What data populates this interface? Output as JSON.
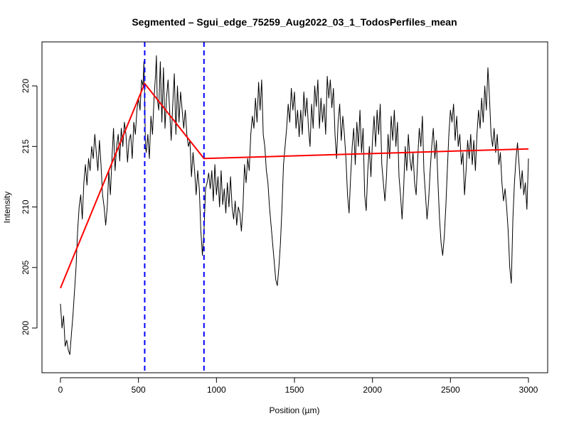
{
  "chart_data": {
    "type": "line",
    "title": "Segmented – Sgui_edge_75259_Aug2022_03_1_TodosPerfiles_mean",
    "xlabel": "Position (µm)",
    "ylabel": "Intensity",
    "xlim": [
      0,
      3000
    ],
    "ylim": [
      197.5,
      222.8
    ],
    "xticks": [
      0,
      500,
      1000,
      1500,
      2000,
      2500,
      3000
    ],
    "yticks": [
      200,
      205,
      210,
      215,
      220
    ],
    "grid": false,
    "series": [
      {
        "role": "profile",
        "color": "#000000",
        "points": [
          [
            0,
            202
          ],
          [
            10,
            200
          ],
          [
            20,
            201
          ],
          [
            30,
            198.5
          ],
          [
            40,
            199
          ],
          [
            50,
            198.2
          ],
          [
            60,
            197.8
          ],
          [
            70,
            199.5
          ],
          [
            80,
            201
          ],
          [
            90,
            203
          ],
          [
            100,
            205
          ],
          [
            110,
            208
          ],
          [
            120,
            210
          ],
          [
            130,
            211
          ],
          [
            140,
            209
          ],
          [
            150,
            212
          ],
          [
            160,
            213.5
          ],
          [
            170,
            211.8
          ],
          [
            180,
            214
          ],
          [
            190,
            213
          ],
          [
            200,
            215
          ],
          [
            210,
            214
          ],
          [
            220,
            216
          ],
          [
            230,
            214.5
          ],
          [
            240,
            213
          ],
          [
            250,
            215.5
          ],
          [
            260,
            213.5
          ],
          [
            270,
            211
          ],
          [
            280,
            210
          ],
          [
            290,
            208.5
          ],
          [
            300,
            210
          ],
          [
            310,
            213
          ],
          [
            320,
            211
          ],
          [
            330,
            214
          ],
          [
            340,
            216.5
          ],
          [
            350,
            213
          ],
          [
            360,
            215
          ],
          [
            370,
            216
          ],
          [
            380,
            213.8
          ],
          [
            390,
            216.5
          ],
          [
            400,
            215
          ],
          [
            410,
            217
          ],
          [
            420,
            216
          ],
          [
            430,
            213.7
          ],
          [
            440,
            215.5
          ],
          [
            450,
            216
          ],
          [
            460,
            214
          ],
          [
            470,
            217
          ],
          [
            480,
            216
          ],
          [
            490,
            218
          ],
          [
            500,
            219
          ],
          [
            510,
            218
          ],
          [
            520,
            220.5
          ],
          [
            530,
            220
          ],
          [
            535,
            222
          ],
          [
            540,
            219
          ],
          [
            545,
            215
          ],
          [
            550,
            214.5
          ],
          [
            560,
            216
          ],
          [
            570,
            214
          ],
          [
            580,
            217.5
          ],
          [
            590,
            216
          ],
          [
            600,
            219
          ],
          [
            610,
            221
          ],
          [
            615,
            222.5
          ],
          [
            620,
            219
          ],
          [
            630,
            218
          ],
          [
            640,
            222
          ],
          [
            650,
            217
          ],
          [
            660,
            221.5
          ],
          [
            670,
            216.5
          ],
          [
            680,
            219
          ],
          [
            690,
            220.5
          ],
          [
            700,
            218
          ],
          [
            710,
            215.5
          ],
          [
            720,
            218.5
          ],
          [
            730,
            221
          ],
          [
            740,
            216
          ],
          [
            750,
            220
          ],
          [
            760,
            217
          ],
          [
            770,
            219.5
          ],
          [
            780,
            218
          ],
          [
            790,
            216.5
          ],
          [
            800,
            218
          ],
          [
            810,
            216
          ],
          [
            820,
            215
          ],
          [
            830,
            215.5
          ],
          [
            840,
            212.5
          ],
          [
            850,
            214.5
          ],
          [
            860,
            213
          ],
          [
            870,
            211
          ],
          [
            880,
            213
          ],
          [
            890,
            211.5
          ],
          [
            900,
            208
          ],
          [
            910,
            206
          ],
          [
            920,
            208
          ],
          [
            930,
            211.5
          ],
          [
            940,
            212
          ],
          [
            950,
            212.8
          ],
          [
            960,
            211.5
          ],
          [
            970,
            213
          ],
          [
            980,
            210.5
          ],
          [
            990,
            213.5
          ],
          [
            1000,
            211
          ],
          [
            1010,
            212.5
          ],
          [
            1020,
            210
          ],
          [
            1030,
            213
          ],
          [
            1040,
            210.2
          ],
          [
            1050,
            211.5
          ],
          [
            1060,
            209.5
          ],
          [
            1070,
            212
          ],
          [
            1080,
            210
          ],
          [
            1090,
            212.5
          ],
          [
            1100,
            210
          ],
          [
            1110,
            209
          ],
          [
            1120,
            210.5
          ],
          [
            1130,
            208.5
          ],
          [
            1140,
            210
          ],
          [
            1150,
            209.5
          ],
          [
            1160,
            208
          ],
          [
            1170,
            210
          ],
          [
            1180,
            213.5
          ],
          [
            1190,
            212
          ],
          [
            1200,
            214
          ],
          [
            1210,
            213
          ],
          [
            1220,
            216
          ],
          [
            1230,
            217.5
          ],
          [
            1240,
            216.5
          ],
          [
            1250,
            219
          ],
          [
            1260,
            217
          ],
          [
            1270,
            220.3
          ],
          [
            1280,
            218
          ],
          [
            1290,
            220.5
          ],
          [
            1300,
            216
          ],
          [
            1310,
            215
          ],
          [
            1320,
            213
          ],
          [
            1330,
            212
          ],
          [
            1340,
            210
          ],
          [
            1350,
            208.5
          ],
          [
            1360,
            207
          ],
          [
            1370,
            205.5
          ],
          [
            1380,
            204
          ],
          [
            1390,
            203.5
          ],
          [
            1400,
            205
          ],
          [
            1410,
            207
          ],
          [
            1420,
            210
          ],
          [
            1430,
            213.5
          ],
          [
            1440,
            215
          ],
          [
            1450,
            216.5
          ],
          [
            1460,
            218.5
          ],
          [
            1470,
            217
          ],
          [
            1480,
            219.8
          ],
          [
            1490,
            218
          ],
          [
            1500,
            219.5
          ],
          [
            1510,
            216.5
          ],
          [
            1520,
            218
          ],
          [
            1530,
            215.8
          ],
          [
            1540,
            218
          ],
          [
            1550,
            216
          ],
          [
            1560,
            219.5
          ],
          [
            1570,
            217.5
          ],
          [
            1580,
            219
          ],
          [
            1590,
            216.5
          ],
          [
            1600,
            215
          ],
          [
            1610,
            218.5
          ],
          [
            1620,
            216.5
          ],
          [
            1630,
            220
          ],
          [
            1640,
            218.3
          ],
          [
            1650,
            220.5
          ],
          [
            1660,
            216.5
          ],
          [
            1670,
            219
          ],
          [
            1680,
            217
          ],
          [
            1690,
            218.5
          ],
          [
            1700,
            216
          ],
          [
            1710,
            220.8
          ],
          [
            1720,
            219
          ],
          [
            1730,
            220.5
          ],
          [
            1740,
            218.2
          ],
          [
            1750,
            219.8
          ],
          [
            1760,
            216
          ],
          [
            1770,
            214
          ],
          [
            1780,
            217
          ],
          [
            1790,
            218.5
          ],
          [
            1800,
            215.5
          ],
          [
            1810,
            217.5
          ],
          [
            1820,
            216
          ],
          [
            1830,
            214
          ],
          [
            1840,
            211
          ],
          [
            1850,
            209.5
          ],
          [
            1860,
            212.5
          ],
          [
            1870,
            215
          ],
          [
            1880,
            216.5
          ],
          [
            1890,
            213.5
          ],
          [
            1900,
            217
          ],
          [
            1910,
            215
          ],
          [
            1920,
            218
          ],
          [
            1930,
            214.5
          ],
          [
            1940,
            216.5
          ],
          [
            1950,
            211
          ],
          [
            1960,
            209.7
          ],
          [
            1970,
            213
          ],
          [
            1980,
            215
          ],
          [
            1990,
            212.5
          ],
          [
            2000,
            215.5
          ],
          [
            2010,
            217.5
          ],
          [
            2020,
            215
          ],
          [
            2030,
            218
          ],
          [
            2040,
            216
          ],
          [
            2050,
            218.5
          ],
          [
            2060,
            213.5
          ],
          [
            2070,
            212
          ],
          [
            2080,
            210.5
          ],
          [
            2090,
            212.5
          ],
          [
            2100,
            216
          ],
          [
            2110,
            214
          ],
          [
            2120,
            217.5
          ],
          [
            2130,
            215.5
          ],
          [
            2140,
            218
          ],
          [
            2150,
            215
          ],
          [
            2160,
            217
          ],
          [
            2170,
            212.5
          ],
          [
            2180,
            211
          ],
          [
            2190,
            209
          ],
          [
            2200,
            211.5
          ],
          [
            2210,
            215
          ],
          [
            2220,
            213
          ],
          [
            2230,
            216
          ],
          [
            2240,
            214
          ],
          [
            2250,
            213
          ],
          [
            2260,
            214.5
          ],
          [
            2270,
            212
          ],
          [
            2280,
            211
          ],
          [
            2290,
            214
          ],
          [
            2300,
            216.5
          ],
          [
            2310,
            215
          ],
          [
            2320,
            217.5
          ],
          [
            2330,
            213
          ],
          [
            2340,
            211
          ],
          [
            2350,
            209
          ],
          [
            2360,
            210.5
          ],
          [
            2370,
            213
          ],
          [
            2380,
            215
          ],
          [
            2390,
            216.5
          ],
          [
            2400,
            214
          ],
          [
            2410,
            215.5
          ],
          [
            2420,
            212
          ],
          [
            2430,
            209
          ],
          [
            2440,
            207
          ],
          [
            2450,
            206
          ],
          [
            2460,
            207.5
          ],
          [
            2470,
            210
          ],
          [
            2480,
            213
          ],
          [
            2490,
            216
          ],
          [
            2500,
            218
          ],
          [
            2510,
            217
          ],
          [
            2520,
            218.5
          ],
          [
            2530,
            215.5
          ],
          [
            2540,
            217.5
          ],
          [
            2550,
            215
          ],
          [
            2560,
            216
          ],
          [
            2570,
            213.5
          ],
          [
            2580,
            214.5
          ],
          [
            2590,
            211
          ],
          [
            2600,
            213
          ],
          [
            2610,
            215.5
          ],
          [
            2620,
            214
          ],
          [
            2630,
            216
          ],
          [
            2640,
            213.5
          ],
          [
            2650,
            215.5
          ],
          [
            2660,
            213
          ],
          [
            2670,
            216
          ],
          [
            2680,
            218
          ],
          [
            2690,
            216.5
          ],
          [
            2700,
            219
          ],
          [
            2710,
            217
          ],
          [
            2720,
            220
          ],
          [
            2730,
            218
          ],
          [
            2740,
            221.5
          ],
          [
            2750,
            219
          ],
          [
            2760,
            216
          ],
          [
            2770,
            215
          ],
          [
            2780,
            216.5
          ],
          [
            2790,
            214.5
          ],
          [
            2800,
            216
          ],
          [
            2810,
            213.5
          ],
          [
            2820,
            214.5
          ],
          [
            2830,
            212
          ],
          [
            2840,
            210.5
          ],
          [
            2850,
            211.5
          ],
          [
            2860,
            210
          ],
          [
            2870,
            208
          ],
          [
            2880,
            205
          ],
          [
            2890,
            203.7
          ],
          [
            2900,
            209
          ],
          [
            2910,
            212
          ],
          [
            2920,
            214
          ],
          [
            2930,
            215.3
          ],
          [
            2940,
            213.5
          ],
          [
            2950,
            211.5
          ],
          [
            2960,
            213
          ],
          [
            2970,
            211
          ],
          [
            2980,
            212
          ],
          [
            2990,
            209.8
          ],
          [
            3000,
            214
          ]
        ]
      },
      {
        "role": "segmented-fit",
        "color": "#ff0000",
        "points": [
          [
            0,
            203.3
          ],
          [
            540,
            220.2
          ],
          [
            920,
            214.0
          ],
          [
            3000,
            214.8
          ]
        ]
      }
    ],
    "breakpoints": {
      "color": "#0000ff",
      "style": "dashed",
      "x": [
        540,
        920
      ]
    }
  }
}
